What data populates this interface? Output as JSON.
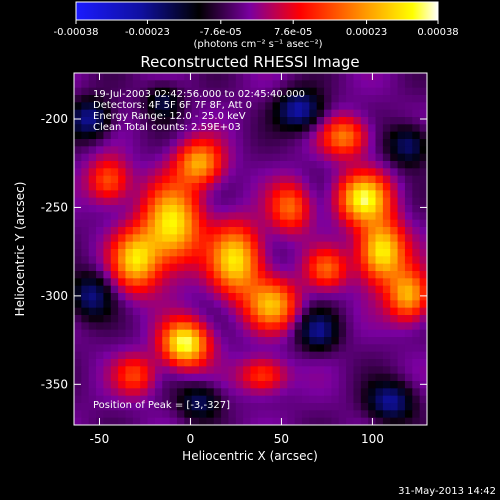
{
  "colorbar": {
    "tick_labels": [
      "-0.00038",
      "-0.00023",
      "-7.6e-05",
      "7.6e-05",
      "0.00023",
      "0.00038"
    ],
    "tick_values": [
      -0.00038,
      -0.00023,
      -7.6e-05,
      7.6e-05,
      0.00023,
      0.00038
    ],
    "range": [
      -0.00038,
      0.00038
    ],
    "units_label": "(photons cm⁻² s⁻¹ asec⁻²)",
    "colors": [
      "#1a1aff",
      "#000000",
      "#7a00a0",
      "#ff0000",
      "#ff9900",
      "#ffff00",
      "#ffffff"
    ]
  },
  "chart_data": {
    "type": "heatmap",
    "title": "Reconstructed RHESSI Image",
    "xlabel": "Heliocentric X (arcsec)",
    "ylabel": "Heliocentric Y (arcsec)",
    "xlim": [
      -64,
      130
    ],
    "ylim": [
      -373,
      -174
    ],
    "xticks": [
      -50,
      0,
      50,
      100
    ],
    "xtick_labels": [
      "-50",
      "0",
      "50",
      "100"
    ],
    "yticks": [
      -200,
      -250,
      -300,
      -350
    ],
    "ytick_labels": [
      "-200",
      "-250",
      "-300",
      "-350"
    ],
    "annotations": [
      "19-Jul-2003 02:42:56.000 to 02:45:40.000",
      "Detectors: 4F 5F 6F 7F 8F, Att 0",
      "Energy Range: 12.0 - 25.0 keV",
      "Clean     Total counts: 2.59E+03"
    ],
    "peak_label": "Position of Peak = [-3,-327]",
    "peak": {
      "x": -3,
      "y": -327
    },
    "blobs": [
      {
        "x": -3,
        "y": -327,
        "amp": 1.0,
        "sx": 9,
        "sy": 9
      },
      {
        "x": -10,
        "y": -260,
        "amp": 0.9,
        "sx": 11,
        "sy": 16
      },
      {
        "x": -30,
        "y": -280,
        "amp": 0.8,
        "sx": 9,
        "sy": 12
      },
      {
        "x": 5,
        "y": -225,
        "amp": 0.7,
        "sx": 9,
        "sy": 9
      },
      {
        "x": 25,
        "y": -280,
        "amp": 0.85,
        "sx": 10,
        "sy": 14
      },
      {
        "x": 45,
        "y": -305,
        "amp": 0.7,
        "sx": 10,
        "sy": 10
      },
      {
        "x": 55,
        "y": -250,
        "amp": 0.55,
        "sx": 8,
        "sy": 10
      },
      {
        "x": 95,
        "y": -245,
        "amp": 0.9,
        "sx": 10,
        "sy": 10
      },
      {
        "x": 105,
        "y": -275,
        "amp": 0.95,
        "sx": 9,
        "sy": 12
      },
      {
        "x": 120,
        "y": -300,
        "amp": 0.75,
        "sx": 8,
        "sy": 10
      },
      {
        "x": 85,
        "y": -210,
        "amp": 0.6,
        "sx": 9,
        "sy": 8
      },
      {
        "x": 75,
        "y": -285,
        "amp": 0.5,
        "sx": 8,
        "sy": 8
      },
      {
        "x": -45,
        "y": -235,
        "amp": 0.55,
        "sx": 8,
        "sy": 9
      },
      {
        "x": -30,
        "y": -345,
        "amp": 0.45,
        "sx": 8,
        "sy": 8
      },
      {
        "x": 40,
        "y": -345,
        "amp": 0.5,
        "sx": 9,
        "sy": 7
      },
      {
        "x": -55,
        "y": -200,
        "amp": -0.5,
        "sx": 8,
        "sy": 8
      },
      {
        "x": -55,
        "y": -300,
        "amp": -0.45,
        "sx": 8,
        "sy": 9
      },
      {
        "x": 60,
        "y": -195,
        "amp": -0.55,
        "sx": 9,
        "sy": 8
      },
      {
        "x": 120,
        "y": -215,
        "amp": -0.45,
        "sx": 8,
        "sy": 8
      },
      {
        "x": 110,
        "y": -360,
        "amp": -0.5,
        "sx": 9,
        "sy": 8
      },
      {
        "x": 5,
        "y": -360,
        "amp": -0.4,
        "sx": 8,
        "sy": 7
      },
      {
        "x": 70,
        "y": -320,
        "amp": -0.45,
        "sx": 8,
        "sy": 8
      },
      {
        "x": -15,
        "y": -190,
        "amp": -0.35,
        "sx": 7,
        "sy": 7
      }
    ]
  },
  "footer": {
    "timestamp": "31-May-2013 14:42"
  }
}
